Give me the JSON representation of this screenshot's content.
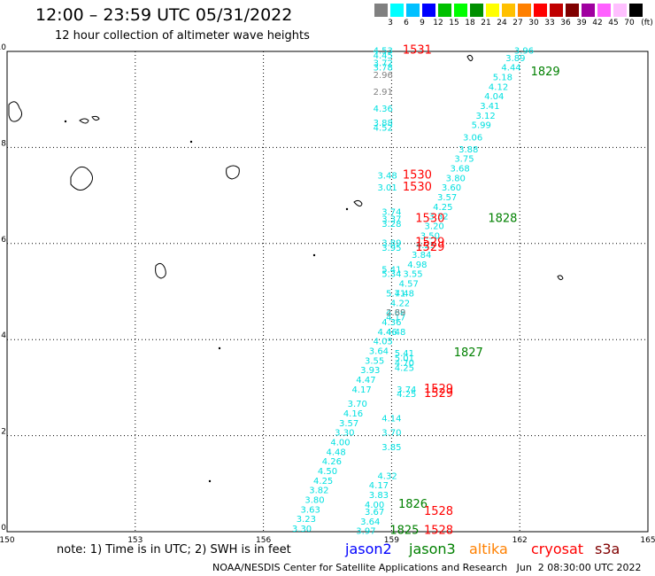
{
  "header": {
    "title": "12:00 – 23:59 UTC 05/31/2022",
    "subtitle": "12 hour collection of altimeter wave heights"
  },
  "color_legend": {
    "labels": [
      "3",
      "6",
      "9",
      "12",
      "15",
      "18",
      "21",
      "24",
      "27",
      "30",
      "33",
      "36",
      "39",
      "42",
      "45",
      "70"
    ],
    "unit": "(ft)",
    "colors": [
      "#808080",
      "#00ffff",
      "#00c0ff",
      "#0000ff",
      "#00c000",
      "#00ff00",
      "#009000",
      "#ffff00",
      "#ffc000",
      "#ff8000",
      "#ff0000",
      "#c00000",
      "#800000",
      "#a000a0",
      "#ff60ff",
      "#ffc0ff",
      "#000000"
    ]
  },
  "note": "note:  1) Time is in UTC;  2) SWH is in feet",
  "satellites": [
    {
      "label": "jason2",
      "color": "#0000ff"
    },
    {
      "label": "jason3",
      "color": "#008000"
    },
    {
      "label": "altika",
      "color": "#ff8000"
    },
    {
      "label": "cryosat",
      "color": "#ff0000"
    },
    {
      "label": "s3a",
      "color": "#800000"
    }
  ],
  "footer": "NOAA/NESDIS Center for Satellite Applications and Research   Jun  2 08:30:00 UTC 2022",
  "chart_data": {
    "type": "scatter",
    "xlim": [
      150,
      165
    ],
    "ylim": [
      0,
      10
    ],
    "xticks": [
      "150",
      "153",
      "156",
      "159",
      "162",
      "165"
    ],
    "yticks": [
      "0",
      "2",
      "4",
      "6",
      "8",
      "10"
    ],
    "grid": true,
    "swh_labels": [
      {
        "x": 158.8,
        "y": 9.95,
        "v": "4.53",
        "c": "#00e0e0"
      },
      {
        "x": 158.8,
        "y": 9.85,
        "v": "4.45",
        "c": "#00e0e0"
      },
      {
        "x": 158.8,
        "y": 9.7,
        "v": "3.72",
        "c": "#00e0e0"
      },
      {
        "x": 158.8,
        "y": 9.6,
        "v": "3.78",
        "c": "#00e0e0"
      },
      {
        "x": 158.8,
        "y": 9.45,
        "v": "2.96",
        "c": "#808080"
      },
      {
        "x": 158.8,
        "y": 9.1,
        "v": "2.91",
        "c": "#808080"
      },
      {
        "x": 158.8,
        "y": 8.75,
        "v": "4.36",
        "c": "#00e0e0"
      },
      {
        "x": 158.8,
        "y": 8.45,
        "v": "3.88",
        "c": "#00e0e0"
      },
      {
        "x": 158.8,
        "y": 8.35,
        "v": "4.52",
        "c": "#00e0e0"
      },
      {
        "x": 158.9,
        "y": 7.35,
        "v": "3.48",
        "c": "#00e0e0"
      },
      {
        "x": 158.9,
        "y": 7.1,
        "v": "3.01",
        "c": "#00e0e0"
      },
      {
        "x": 159.0,
        "y": 6.6,
        "v": "3.74",
        "c": "#00e0e0"
      },
      {
        "x": 159.0,
        "y": 6.45,
        "v": "3.37",
        "c": "#00e0e0"
      },
      {
        "x": 159.0,
        "y": 6.35,
        "v": "3.28",
        "c": "#00e0e0"
      },
      {
        "x": 159.0,
        "y": 5.95,
        "v": "3.89",
        "c": "#00e0e0"
      },
      {
        "x": 159.0,
        "y": 5.85,
        "v": "3.95",
        "c": "#00e0e0"
      },
      {
        "x": 159.0,
        "y": 5.4,
        "v": "5.41",
        "c": "#00e0e0"
      },
      {
        "x": 159.0,
        "y": 5.3,
        "v": "5.34",
        "c": "#00e0e0"
      },
      {
        "x": 159.1,
        "y": 4.9,
        "v": "5.71",
        "c": "#00e0e0"
      },
      {
        "x": 159.1,
        "y": 4.5,
        "v": "4.68",
        "c": "#00e0e0"
      },
      {
        "x": 159.1,
        "y": 4.4,
        "v": "4.17",
        "c": "#00e0e0"
      },
      {
        "x": 159.1,
        "y": 4.1,
        "v": "4.48",
        "c": "#00e0e0"
      },
      {
        "x": 159.3,
        "y": 3.65,
        "v": "5.41",
        "c": "#00e0e0"
      },
      {
        "x": 159.3,
        "y": 3.55,
        "v": "5.01",
        "c": "#00e0e0"
      },
      {
        "x": 159.3,
        "y": 3.45,
        "v": "4.70",
        "c": "#00e0e0"
      },
      {
        "x": 159.3,
        "y": 3.35,
        "v": "4.25",
        "c": "#00e0e0"
      },
      {
        "x": 159.35,
        "y": 2.9,
        "v": "3.74",
        "c": "#00e0e0"
      },
      {
        "x": 159.35,
        "y": 2.8,
        "v": "4.25",
        "c": "#00e0e0"
      },
      {
        "x": 159.0,
        "y": 2.3,
        "v": "4.14",
        "c": "#00e0e0"
      },
      {
        "x": 159.0,
        "y": 2.0,
        "v": "3.70",
        "c": "#00e0e0"
      },
      {
        "x": 159.0,
        "y": 1.7,
        "v": "3.85",
        "c": "#00e0e0"
      },
      {
        "x": 158.9,
        "y": 1.1,
        "v": "4.32",
        "c": "#00e0e0"
      },
      {
        "x": 158.7,
        "y": 0.9,
        "v": "4.17",
        "c": "#00e0e0"
      },
      {
        "x": 158.7,
        "y": 0.7,
        "v": "3.83",
        "c": "#00e0e0"
      },
      {
        "x": 158.6,
        "y": 0.5,
        "v": "4.00",
        "c": "#00e0e0"
      },
      {
        "x": 158.6,
        "y": 0.35,
        "v": "3.67",
        "c": "#00e0e0"
      },
      {
        "x": 158.5,
        "y": 0.15,
        "v": "3.64",
        "c": "#00e0e0"
      },
      {
        "x": 158.4,
        "y": -0.05,
        "v": "3.97",
        "c": "#00e0e0"
      },
      {
        "x": 162.1,
        "y": 9.95,
        "v": "3.96",
        "c": "#00e0e0"
      },
      {
        "x": 161.9,
        "y": 9.8,
        "v": "3.89",
        "c": "#00e0e0"
      },
      {
        "x": 161.8,
        "y": 9.6,
        "v": "4.44",
        "c": "#00e0e0"
      },
      {
        "x": 161.6,
        "y": 9.4,
        "v": "5.18",
        "c": "#00e0e0"
      },
      {
        "x": 161.5,
        "y": 9.2,
        "v": "4.12",
        "c": "#00e0e0"
      },
      {
        "x": 161.4,
        "y": 9.0,
        "v": "4.04",
        "c": "#00e0e0"
      },
      {
        "x": 161.3,
        "y": 8.8,
        "v": "3.41",
        "c": "#00e0e0"
      },
      {
        "x": 161.2,
        "y": 8.6,
        "v": "3.12",
        "c": "#00e0e0"
      },
      {
        "x": 161.1,
        "y": 8.4,
        "v": "5.99",
        "c": "#00e0e0"
      },
      {
        "x": 160.9,
        "y": 8.15,
        "v": "3.06",
        "c": "#00e0e0"
      },
      {
        "x": 160.8,
        "y": 7.9,
        "v": "3.88",
        "c": "#00e0e0"
      },
      {
        "x": 160.7,
        "y": 7.7,
        "v": "3.75",
        "c": "#00e0e0"
      },
      {
        "x": 160.6,
        "y": 7.5,
        "v": "3.68",
        "c": "#00e0e0"
      },
      {
        "x": 160.5,
        "y": 7.3,
        "v": "3.80",
        "c": "#00e0e0"
      },
      {
        "x": 160.4,
        "y": 7.1,
        "v": "3.60",
        "c": "#00e0e0"
      },
      {
        "x": 160.3,
        "y": 6.9,
        "v": "3.57",
        "c": "#00e0e0"
      },
      {
        "x": 160.2,
        "y": 6.7,
        "v": "4.25",
        "c": "#00e0e0"
      },
      {
        "x": 160.1,
        "y": 6.5,
        "v": "3.32",
        "c": "#00e0e0"
      },
      {
        "x": 160.0,
        "y": 6.3,
        "v": "3.20",
        "c": "#00e0e0"
      },
      {
        "x": 159.9,
        "y": 6.1,
        "v": "3.50",
        "c": "#00e0e0"
      },
      {
        "x": 159.8,
        "y": 5.9,
        "v": "4.25",
        "c": "#00e0e0"
      },
      {
        "x": 159.7,
        "y": 5.7,
        "v": "3.84",
        "c": "#00e0e0"
      },
      {
        "x": 159.6,
        "y": 5.5,
        "v": "4.98",
        "c": "#00e0e0"
      },
      {
        "x": 159.5,
        "y": 5.3,
        "v": "3.55",
        "c": "#00e0e0"
      },
      {
        "x": 159.4,
        "y": 5.1,
        "v": "4.57",
        "c": "#00e0e0"
      },
      {
        "x": 159.3,
        "y": 4.9,
        "v": "4.48",
        "c": "#00e0e0"
      },
      {
        "x": 159.2,
        "y": 4.7,
        "v": "4.22",
        "c": "#00e0e0"
      },
      {
        "x": 159.1,
        "y": 4.5,
        "v": "2.89",
        "c": "#808080"
      },
      {
        "x": 159.0,
        "y": 4.3,
        "v": "4.36",
        "c": "#00e0e0"
      },
      {
        "x": 158.9,
        "y": 4.1,
        "v": "4.46",
        "c": "#00e0e0"
      },
      {
        "x": 158.8,
        "y": 3.9,
        "v": "4.05",
        "c": "#00e0e0"
      },
      {
        "x": 158.7,
        "y": 3.7,
        "v": "3.64",
        "c": "#00e0e0"
      },
      {
        "x": 158.6,
        "y": 3.5,
        "v": "3.55",
        "c": "#00e0e0"
      },
      {
        "x": 158.5,
        "y": 3.3,
        "v": "3.93",
        "c": "#00e0e0"
      },
      {
        "x": 158.4,
        "y": 3.1,
        "v": "4.47",
        "c": "#00e0e0"
      },
      {
        "x": 158.3,
        "y": 2.9,
        "v": "4.17",
        "c": "#00e0e0"
      },
      {
        "x": 158.2,
        "y": 2.6,
        "v": "3.70",
        "c": "#00e0e0"
      },
      {
        "x": 158.1,
        "y": 2.4,
        "v": "4.16",
        "c": "#00e0e0"
      },
      {
        "x": 158.0,
        "y": 2.2,
        "v": "3.57",
        "c": "#00e0e0"
      },
      {
        "x": 157.9,
        "y": 2.0,
        "v": "3.30",
        "c": "#00e0e0"
      },
      {
        "x": 157.8,
        "y": 1.8,
        "v": "4.00",
        "c": "#00e0e0"
      },
      {
        "x": 157.7,
        "y": 1.6,
        "v": "4.48",
        "c": "#00e0e0"
      },
      {
        "x": 157.6,
        "y": 1.4,
        "v": "4.26",
        "c": "#00e0e0"
      },
      {
        "x": 157.5,
        "y": 1.2,
        "v": "4.50",
        "c": "#00e0e0"
      },
      {
        "x": 157.4,
        "y": 1.0,
        "v": "4.25",
        "c": "#00e0e0"
      },
      {
        "x": 157.3,
        "y": 0.8,
        "v": "3.82",
        "c": "#00e0e0"
      },
      {
        "x": 157.2,
        "y": 0.6,
        "v": "3.80",
        "c": "#00e0e0"
      },
      {
        "x": 157.1,
        "y": 0.4,
        "v": "3.63",
        "c": "#00e0e0"
      },
      {
        "x": 157.0,
        "y": 0.2,
        "v": "3.23",
        "c": "#00e0e0"
      },
      {
        "x": 156.9,
        "y": 0.0,
        "v": "3.30",
        "c": "#00e0e0"
      }
    ],
    "time_labels": [
      {
        "x": 159.6,
        "y": 9.95,
        "v": "1531",
        "c": "#ff0000"
      },
      {
        "x": 162.6,
        "y": 9.5,
        "v": "1829",
        "c": "#008000"
      },
      {
        "x": 159.6,
        "y": 7.35,
        "v": "1530",
        "c": "#ff0000"
      },
      {
        "x": 159.6,
        "y": 7.1,
        "v": "1530",
        "c": "#ff0000"
      },
      {
        "x": 159.9,
        "y": 6.45,
        "v": "1530",
        "c": "#ff0000"
      },
      {
        "x": 161.6,
        "y": 6.45,
        "v": "1828",
        "c": "#008000"
      },
      {
        "x": 159.9,
        "y": 5.95,
        "v": "1529",
        "c": "#ff0000"
      },
      {
        "x": 159.9,
        "y": 5.85,
        "v": "1529",
        "c": "#ff0000"
      },
      {
        "x": 160.8,
        "y": 3.65,
        "v": "1827",
        "c": "#008000"
      },
      {
        "x": 160.1,
        "y": 2.9,
        "v": "1529",
        "c": "#ff0000"
      },
      {
        "x": 160.1,
        "y": 2.8,
        "v": "1529",
        "c": "#ff0000"
      },
      {
        "x": 159.5,
        "y": 0.5,
        "v": "1826",
        "c": "#008000"
      },
      {
        "x": 160.1,
        "y": 0.35,
        "v": "1528",
        "c": "#ff0000"
      },
      {
        "x": 160.1,
        "y": -0.05,
        "v": "1528",
        "c": "#ff0000"
      },
      {
        "x": 159.3,
        "y": -0.05,
        "v": "1825",
        "c": "#008000"
      }
    ]
  }
}
